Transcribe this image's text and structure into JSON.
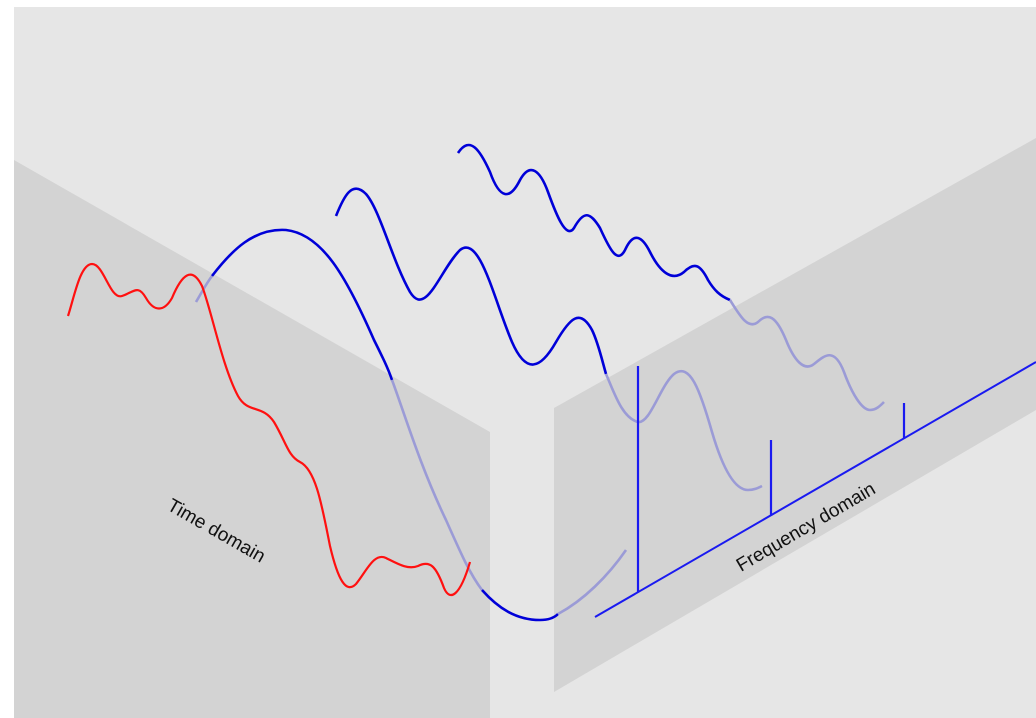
{
  "diagram": {
    "labels": {
      "time_domain": "Time domain",
      "frequency_domain": "Frequency domain"
    },
    "colors": {
      "background": "#e6e6e6",
      "panel": "#d3d3d3",
      "signal_sum": "#ff0000",
      "component": "#0000d8",
      "component_faded": "#9b9bd6",
      "axis": "#1a1af0"
    },
    "components": [
      {
        "name": "",
        "relative_frequency": 1,
        "relative_amplitude": 1.0
      },
      {
        "name": "",
        "relative_frequency": 3,
        "relative_amplitude": 0.33
      },
      {
        "name": "",
        "relative_frequency": 5,
        "relative_amplitude": 0.2
      }
    ]
  }
}
